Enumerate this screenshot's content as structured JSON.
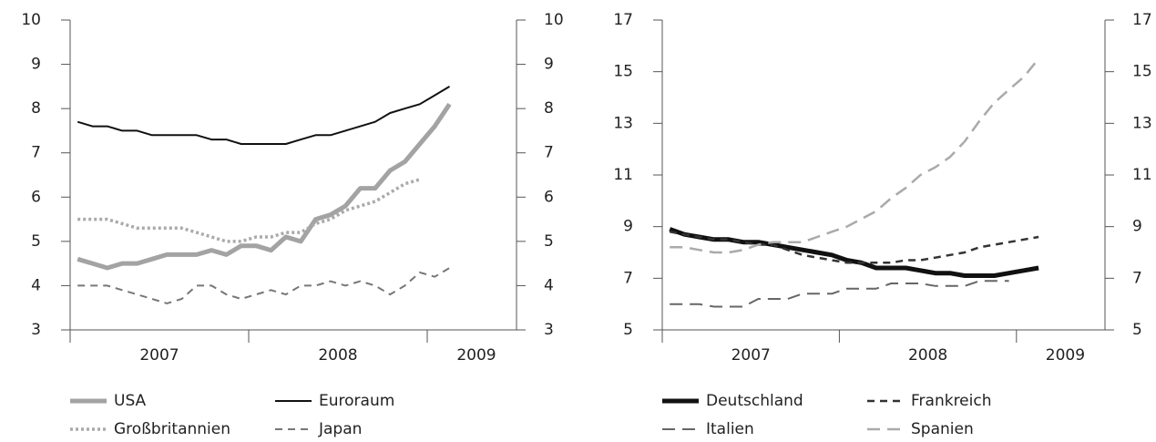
{
  "chart_data": [
    {
      "type": "line",
      "x": [
        2007.042,
        2007.125,
        2007.208,
        2007.292,
        2007.375,
        2007.458,
        2007.542,
        2007.625,
        2007.708,
        2007.792,
        2007.875,
        2007.958,
        2008.042,
        2008.125,
        2008.208,
        2008.292,
        2008.375,
        2008.458,
        2008.542,
        2008.625,
        2008.708,
        2008.792,
        2008.875,
        2008.958,
        2009.042,
        2009.125
      ],
      "xlim": [
        2007,
        2009.5
      ],
      "xticks": [
        2007,
        2008,
        2009
      ],
      "year_labels": [
        "2007",
        "2008",
        "2009"
      ],
      "ylim": [
        3,
        10
      ],
      "yticks": [
        3,
        4,
        5,
        6,
        7,
        8,
        9,
        10
      ],
      "series": [
        {
          "name": "USA",
          "color": "#a3a3a3",
          "width": 5,
          "style": "solid",
          "values": [
            4.6,
            4.5,
            4.4,
            4.5,
            4.5,
            4.6,
            4.7,
            4.7,
            4.7,
            4.8,
            4.7,
            4.9,
            4.9,
            4.8,
            5.1,
            5.0,
            5.5,
            5.6,
            5.8,
            6.2,
            6.2,
            6.6,
            6.8,
            7.2,
            7.6,
            8.1
          ]
        },
        {
          "name": "Euroraum",
          "color": "#111111",
          "width": 2,
          "style": "solid",
          "values": [
            7.7,
            7.6,
            7.6,
            7.5,
            7.5,
            7.4,
            7.4,
            7.4,
            7.4,
            7.3,
            7.3,
            7.2,
            7.2,
            7.2,
            7.2,
            7.3,
            7.4,
            7.4,
            7.5,
            7.6,
            7.7,
            7.9,
            8.0,
            8.1,
            8.3,
            8.5
          ]
        },
        {
          "name": "Großbritannien",
          "color": "#aaaaaa",
          "width": 3.5,
          "style": "dotted",
          "values": [
            5.5,
            5.5,
            5.5,
            5.4,
            5.3,
            5.3,
            5.3,
            5.3,
            5.2,
            5.1,
            5.0,
            5.0,
            5.1,
            5.1,
            5.2,
            5.2,
            5.4,
            5.5,
            5.7,
            5.8,
            5.9,
            6.1,
            6.3,
            6.4,
            null,
            null
          ]
        },
        {
          "name": "Japan",
          "color": "#777777",
          "width": 2,
          "style": "dashed",
          "values": [
            4.0,
            4.0,
            4.0,
            3.9,
            3.8,
            3.7,
            3.6,
            3.7,
            4.0,
            4.0,
            3.8,
            3.7,
            3.8,
            3.9,
            3.8,
            4.0,
            4.0,
            4.1,
            4.0,
            4.1,
            4.0,
            3.8,
            4.0,
            4.3,
            4.2,
            4.4
          ]
        }
      ]
    },
    {
      "type": "line",
      "x": [
        2007.042,
        2007.125,
        2007.208,
        2007.292,
        2007.375,
        2007.458,
        2007.542,
        2007.625,
        2007.708,
        2007.792,
        2007.875,
        2007.958,
        2008.042,
        2008.125,
        2008.208,
        2008.292,
        2008.375,
        2008.458,
        2008.542,
        2008.625,
        2008.708,
        2008.792,
        2008.875,
        2008.958,
        2009.042,
        2009.125
      ],
      "xlim": [
        2007,
        2009.5
      ],
      "xticks": [
        2007,
        2008,
        2009
      ],
      "year_labels": [
        "2007",
        "2008",
        "2009"
      ],
      "ylim": [
        5,
        17
      ],
      "yticks": [
        5,
        7,
        9,
        11,
        13,
        15,
        17
      ],
      "series": [
        {
          "name": "Deutschland",
          "color": "#111111",
          "width": 5,
          "style": "solid",
          "values": [
            8.9,
            8.7,
            8.6,
            8.5,
            8.5,
            8.4,
            8.4,
            8.3,
            8.2,
            8.1,
            8.0,
            7.9,
            7.7,
            7.6,
            7.4,
            7.4,
            7.4,
            7.3,
            7.2,
            7.2,
            7.1,
            7.1,
            7.1,
            7.2,
            7.3,
            7.4
          ]
        },
        {
          "name": "Frankreich",
          "color": "#333333",
          "width": 2.5,
          "style": "dashed",
          "values": [
            8.8,
            8.7,
            8.6,
            8.5,
            8.5,
            8.4,
            8.3,
            8.3,
            8.1,
            7.9,
            7.8,
            7.7,
            7.6,
            7.6,
            7.6,
            7.6,
            7.7,
            7.7,
            7.8,
            7.9,
            8.0,
            8.2,
            8.3,
            8.4,
            8.5,
            8.6
          ]
        },
        {
          "name": "Italien",
          "color": "#666666",
          "width": 2,
          "style": "longdash",
          "values": [
            6.0,
            6.0,
            6.0,
            5.9,
            5.9,
            5.9,
            6.2,
            6.2,
            6.2,
            6.4,
            6.4,
            6.4,
            6.6,
            6.6,
            6.6,
            6.8,
            6.8,
            6.8,
            6.7,
            6.7,
            6.7,
            6.9,
            6.9,
            6.9,
            null,
            null
          ]
        },
        {
          "name": "Spanien",
          "color": "#aaaaaa",
          "width": 2.5,
          "style": "longdash",
          "values": [
            8.2,
            8.2,
            8.1,
            8.0,
            8.0,
            8.1,
            8.3,
            8.4,
            8.4,
            8.4,
            8.6,
            8.8,
            9.0,
            9.3,
            9.6,
            10.1,
            10.5,
            11.0,
            11.3,
            11.7,
            12.3,
            13.1,
            13.8,
            14.3,
            14.8,
            15.5
          ]
        }
      ]
    }
  ]
}
